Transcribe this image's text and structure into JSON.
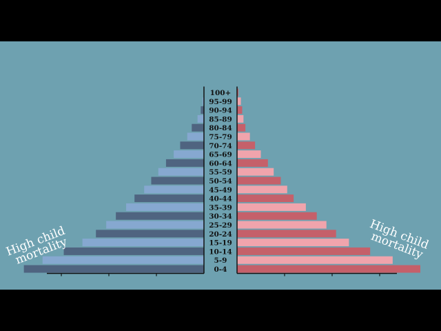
{
  "chart_data": {
    "type": "bar",
    "orientation": "horizontal",
    "subtype": "population-pyramid",
    "title": "",
    "xlabel": "",
    "ylabel": "",
    "categories": [
      "0-4",
      "5-9",
      "10-14",
      "15-19",
      "20-24",
      "25-29",
      "30-34",
      "35-39",
      "40-44",
      "45-49",
      "50-54",
      "55-59",
      "60-64",
      "65-69",
      "70-74",
      "75-79",
      "80-84",
      "85-89",
      "90-94",
      "95-99",
      "100+"
    ],
    "series": [
      {
        "side": "left",
        "color_dark": "#4f6480",
        "color_light": "#86a8d0",
        "values": [
          280,
          251,
          218,
          189,
          168,
          152,
          137,
          121,
          108,
          93,
          82,
          71,
          59,
          47,
          37,
          26,
          19,
          10,
          5,
          2,
          0.5
        ]
      },
      {
        "side": "right",
        "color_dark": "#c5606a",
        "color_light": "#f0a4ac",
        "values": [
          285,
          242,
          207,
          174,
          154,
          139,
          124,
          107,
          88,
          78,
          68,
          57,
          48,
          37,
          28,
          20,
          13,
          10,
          8,
          6,
          2
        ]
      }
    ],
    "xlim": [
      0,
      300
    ],
    "annotations": [
      {
        "side": "left",
        "lines": [
          "High child",
          "mortality"
        ]
      },
      {
        "side": "right",
        "lines": [
          "High child",
          "mortality"
        ]
      }
    ]
  }
}
